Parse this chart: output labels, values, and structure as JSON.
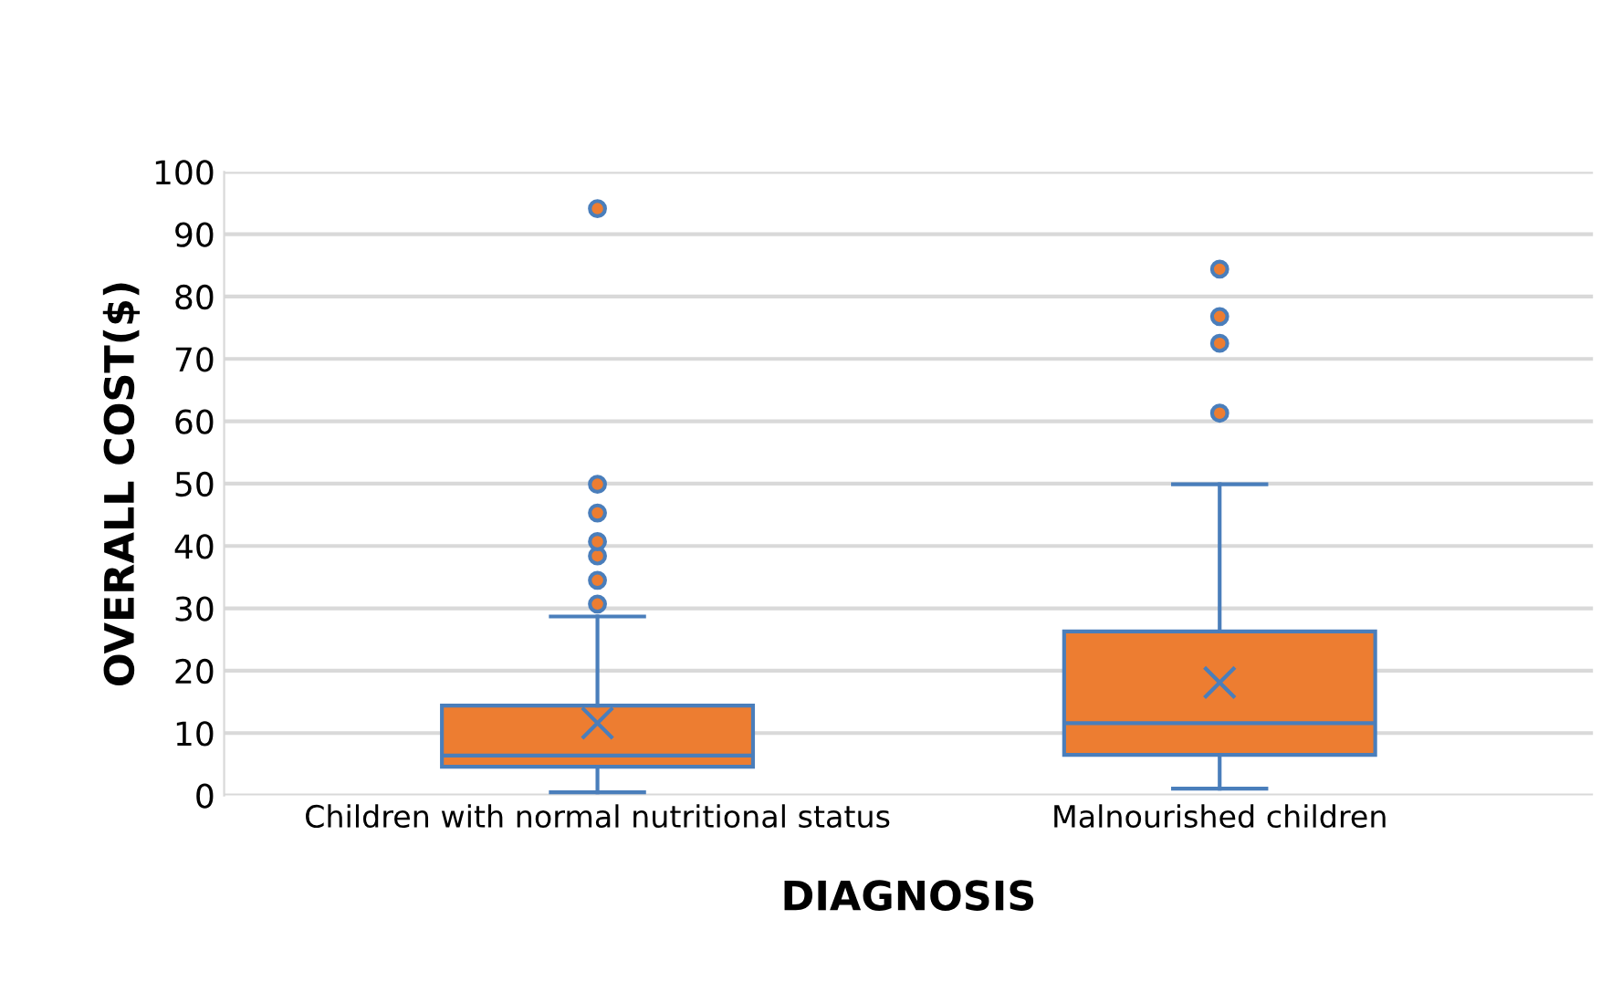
{
  "chart_data": {
    "type": "box",
    "xlabel": "DIAGNOSIS",
    "ylabel": "OVERALL COST($)",
    "categories": [
      "Children with normal nutritional status",
      "Malnourished children"
    ],
    "series": [
      {
        "color": "#ed7d31",
        "boxes": [
          {
            "low": 0.5,
            "q1": 4.6,
            "median": 6.4,
            "q3": 14.4,
            "high": 28.7,
            "mean": 11.6,
            "outliers": [
              30.7,
              34.5,
              38.4,
              40.7,
              45.3,
              49.9,
              94.1
            ]
          },
          {
            "low": 1.1,
            "q1": 6.5,
            "median": 11.6,
            "q3": 26.3,
            "high": 49.9,
            "mean": 18.1,
            "outliers": [
              61.3,
              72.5,
              76.8,
              84.4
            ]
          }
        ]
      }
    ],
    "ylim": [
      0,
      100
    ],
    "yticks": [
      0,
      10,
      20,
      30,
      40,
      50,
      60,
      70,
      80,
      90,
      100
    ],
    "grid": "y",
    "legend": false
  }
}
